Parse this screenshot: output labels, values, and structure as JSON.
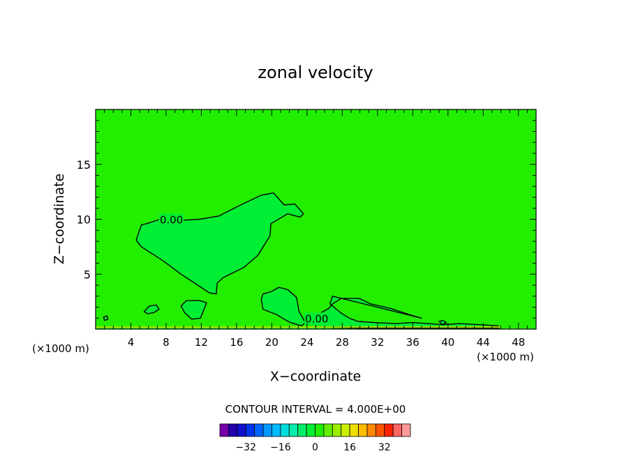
{
  "chart_data": {
    "type": "heatmap",
    "title": "zonal velocity",
    "xlabel": "X−coordinate",
    "ylabel": "Z−coordinate",
    "x_unit_left": "(×1000 m)",
    "x_unit_right": "(×1000 m)",
    "xlim": [
      0,
      50
    ],
    "ylim": [
      0,
      20
    ],
    "x_ticks": [
      4,
      8,
      12,
      16,
      20,
      24,
      28,
      32,
      36,
      40,
      44,
      48
    ],
    "x_tick_labels": [
      "4",
      "8",
      "12",
      "16",
      "20",
      "24",
      "28",
      "32",
      "36",
      "40",
      "44",
      "48"
    ],
    "y_ticks": [
      5,
      10,
      15
    ],
    "y_tick_labels": [
      "5",
      "10",
      "15"
    ],
    "background_color": "#22ee00",
    "contour_fill_color": "#00ee33",
    "contour_labels": [
      {
        "text": "0.00",
        "x": 8.6,
        "z": 10.0
      },
      {
        "text": "0.00",
        "x": 25.1,
        "z": 1.0
      }
    ],
    "contours": [
      {
        "name": "upper-region",
        "points": [
          [
            5.2,
            9.5
          ],
          [
            4.6,
            8.1
          ],
          [
            5.2,
            7.5
          ],
          [
            7.7,
            6.2
          ],
          [
            9.7,
            5.0
          ],
          [
            11.6,
            4.0
          ],
          [
            12.9,
            3.3
          ],
          [
            13.7,
            3.2
          ],
          [
            13.8,
            4.2
          ],
          [
            14.5,
            4.7
          ],
          [
            16.8,
            5.6
          ],
          [
            18.4,
            6.7
          ],
          [
            19.8,
            8.5
          ],
          [
            19.9,
            9.6
          ],
          [
            21.8,
            10.5
          ],
          [
            23.2,
            10.2
          ],
          [
            23.6,
            10.5
          ],
          [
            22.6,
            11.4
          ],
          [
            21.4,
            11.3
          ],
          [
            20.2,
            12.4
          ],
          [
            18.8,
            12.2
          ],
          [
            16.2,
            11.2
          ],
          [
            14.0,
            10.3
          ],
          [
            11.8,
            10.0
          ],
          [
            9.6,
            9.9
          ],
          [
            7.3,
            10.0
          ],
          [
            5.8,
            9.6
          ]
        ]
      },
      {
        "name": "middle-region",
        "points": [
          [
            18.8,
            2.7
          ],
          [
            19.0,
            1.8
          ],
          [
            20.6,
            1.3
          ],
          [
            21.4,
            0.9
          ],
          [
            22.1,
            0.6
          ],
          [
            23.4,
            0.3
          ],
          [
            23.8,
            0.6
          ],
          [
            23.1,
            1.6
          ],
          [
            22.8,
            2.9
          ],
          [
            21.8,
            3.6
          ],
          [
            20.8,
            3.8
          ],
          [
            19.9,
            3.4
          ],
          [
            19.0,
            3.2
          ]
        ]
      },
      {
        "name": "right-region",
        "points": [
          [
            26.9,
            3.0
          ],
          [
            26.6,
            2.3
          ],
          [
            27.8,
            1.5
          ],
          [
            28.8,
            1.0
          ],
          [
            29.8,
            0.7
          ],
          [
            31.6,
            0.6
          ],
          [
            34.1,
            0.5
          ],
          [
            35.9,
            0.6
          ],
          [
            37.7,
            0.5
          ],
          [
            39.4,
            0.4
          ],
          [
            41.3,
            0.5
          ],
          [
            43.6,
            0.4
          ],
          [
            45.7,
            0.3
          ],
          [
            45.8,
            0.1
          ],
          [
            30.0,
            0.1
          ],
          [
            25.0,
            0.2
          ],
          [
            24.8,
            0.9
          ],
          [
            25.4,
            1.4
          ],
          [
            26.5,
            1.9
          ],
          [
            26.9,
            2.3
          ],
          [
            27.9,
            2.8
          ],
          [
            29.9,
            2.8
          ],
          [
            31.2,
            2.3
          ],
          [
            33.4,
            1.9
          ],
          [
            35.7,
            1.3
          ],
          [
            37.0,
            1.0
          ]
        ]
      },
      {
        "name": "blob-10",
        "points": [
          [
            9.7,
            2.1
          ],
          [
            10.3,
            2.6
          ],
          [
            11.8,
            2.6
          ],
          [
            12.6,
            2.4
          ],
          [
            12.2,
            1.6
          ],
          [
            11.9,
            1.0
          ],
          [
            10.9,
            0.9
          ],
          [
            10.1,
            1.5
          ],
          [
            9.7,
            2.1
          ]
        ]
      },
      {
        "name": "blob-6",
        "points": [
          [
            5.5,
            1.6
          ],
          [
            6.1,
            2.1
          ],
          [
            6.9,
            2.2
          ],
          [
            7.2,
            1.8
          ],
          [
            6.6,
            1.5
          ],
          [
            5.9,
            1.4
          ],
          [
            5.5,
            1.6
          ]
        ]
      },
      {
        "name": "blob-2",
        "points": [
          [
            0.9,
            1.1
          ],
          [
            1.3,
            1.2
          ],
          [
            1.4,
            0.9
          ],
          [
            1.0,
            0.8
          ],
          [
            0.9,
            1.1
          ]
        ]
      },
      {
        "name": "blob-40",
        "points": [
          [
            39.0,
            0.7
          ],
          [
            39.4,
            0.8
          ],
          [
            39.8,
            0.6
          ],
          [
            39.4,
            0.4
          ],
          [
            39.0,
            0.7
          ]
        ]
      }
    ],
    "ground_line_color": "#a8e000",
    "colorbar": {
      "title": "CONTOUR INTERVAL = 4.000E+00",
      "tick_labels": [
        "−32",
        "−16",
        "0",
        "16",
        "32"
      ],
      "tick_values": [
        -32,
        -16,
        0,
        16,
        32
      ],
      "bins": [
        -40,
        -36,
        -32,
        -28,
        -24,
        -20,
        -16,
        -12,
        -8,
        -4,
        0,
        4,
        8,
        12,
        16,
        20,
        24,
        28,
        32,
        36,
        40
      ],
      "colors": [
        "#7700aa",
        "#2200aa",
        "#1111cc",
        "#0033ee",
        "#0066ff",
        "#0099ff",
        "#00bbff",
        "#00dddd",
        "#00eeaa",
        "#00ee66",
        "#00ee33",
        "#22ee00",
        "#66ee00",
        "#99ee00",
        "#ccee00",
        "#eedd00",
        "#ffbb00",
        "#ff8800",
        "#ff5500",
        "#ff2200",
        "#ff6666",
        "#ff9999"
      ]
    }
  }
}
